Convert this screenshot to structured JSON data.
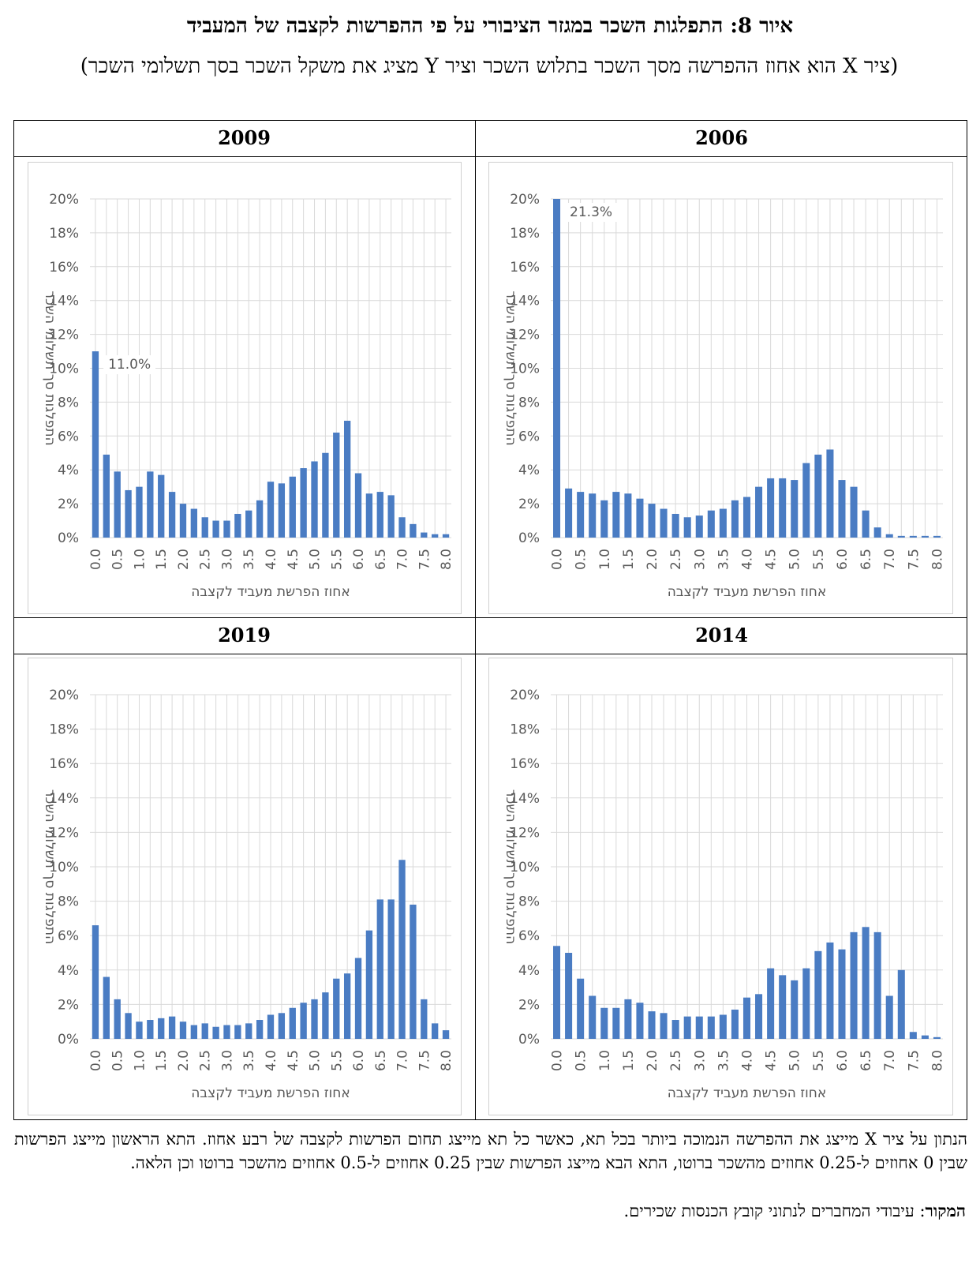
{
  "title": "איור 8: התפלגות השכר במגזר הציבורי על פי ההפרשות לקצבה של המעביד",
  "subtitle": "(ציר X הוא אחוז ההפרשה מסך השכר בתלוש השכר וציר Y מציג את משקל השכר בסך תשלומי השכר)",
  "chart_data": [
    {
      "type": "bar",
      "title": "2006",
      "color": "#4a7cc3",
      "grid": true,
      "xlabel": "אחוז הפרשת מעביד לקצבה",
      "ylabel": "התפלגות סך תשלומי השכר",
      "categories": [
        "0.0",
        null,
        "0.5",
        null,
        "1.0",
        null,
        "1.5",
        null,
        "2.0",
        null,
        "2.5",
        null,
        "3.0",
        null,
        "3.5",
        null,
        "4.0",
        null,
        "4.5",
        null,
        "5.0",
        null,
        "5.5",
        null,
        "6.0",
        null,
        "6.5",
        null,
        "7.0",
        null,
        "7.5",
        null,
        "8.0"
      ],
      "values": [
        21.3,
        2.9,
        2.7,
        2.6,
        2.2,
        2.7,
        2.6,
        2.3,
        2.0,
        1.7,
        1.4,
        1.2,
        1.3,
        1.6,
        1.7,
        2.2,
        2.4,
        3.0,
        3.5,
        3.5,
        3.4,
        4.4,
        4.9,
        5.2,
        3.4,
        3.0,
        1.6,
        0.6,
        0.2,
        0.1,
        0.1,
        0.1,
        0.1
      ],
      "value_labels": [
        "21.3%",
        null,
        null,
        null,
        null,
        null,
        null,
        null,
        null,
        null,
        null,
        null,
        null,
        null,
        null,
        null,
        null,
        null,
        null,
        null,
        null,
        null,
        null,
        null,
        null,
        null,
        null,
        null,
        null,
        null,
        null,
        null,
        null
      ],
      "ylim": [
        0,
        20
      ],
      "yticks": [
        {
          "value": 0,
          "label": "0%"
        },
        {
          "value": 2,
          "label": "2%"
        },
        {
          "value": 4,
          "label": "4%"
        },
        {
          "value": 6,
          "label": "6%"
        },
        {
          "value": 8,
          "label": "8%"
        },
        {
          "value": 10,
          "label": "10%"
        },
        {
          "value": 12,
          "label": "12%"
        },
        {
          "value": 14,
          "label": "14%"
        },
        {
          "value": 16,
          "label": "16%"
        },
        {
          "value": 18,
          "label": "18%"
        },
        {
          "value": 20,
          "label": "20%"
        }
      ]
    },
    {
      "type": "bar",
      "title": "2009",
      "color": "#4a7cc3",
      "grid": true,
      "xlabel": "אחוז הפרשת מעביד לקצבה",
      "ylabel": "התפלגות סך תשלומי השכר",
      "categories": [
        "0.0",
        null,
        "0.5",
        null,
        "1.0",
        null,
        "1.5",
        null,
        "2.0",
        null,
        "2.5",
        null,
        "3.0",
        null,
        "3.5",
        null,
        "4.0",
        null,
        "4.5",
        null,
        "5.0",
        null,
        "5.5",
        null,
        "6.0",
        null,
        "6.5",
        null,
        "7.0",
        null,
        "7.5",
        null,
        "8.0"
      ],
      "values": [
        11.0,
        4.9,
        3.9,
        2.8,
        3.0,
        3.9,
        3.7,
        2.7,
        2.0,
        1.7,
        1.2,
        1.0,
        1.0,
        1.4,
        1.6,
        2.2,
        3.3,
        3.2,
        3.6,
        4.1,
        4.5,
        5.0,
        6.2,
        6.9,
        3.8,
        2.6,
        2.7,
        2.5,
        1.2,
        0.8,
        0.3,
        0.2,
        0.2
      ],
      "value_labels": [
        "11.0%",
        null,
        null,
        null,
        null,
        null,
        null,
        null,
        null,
        null,
        null,
        null,
        null,
        null,
        null,
        null,
        null,
        null,
        null,
        null,
        null,
        null,
        null,
        null,
        null,
        null,
        null,
        null,
        null,
        null,
        null,
        null,
        null
      ],
      "ylim": [
        0,
        20
      ],
      "yticks": [
        {
          "value": 0,
          "label": "0%"
        },
        {
          "value": 2,
          "label": "2%"
        },
        {
          "value": 4,
          "label": "4%"
        },
        {
          "value": 6,
          "label": "6%"
        },
        {
          "value": 8,
          "label": "8%"
        },
        {
          "value": 10,
          "label": "10%"
        },
        {
          "value": 12,
          "label": "12%"
        },
        {
          "value": 14,
          "label": "14%"
        },
        {
          "value": 16,
          "label": "16%"
        },
        {
          "value": 18,
          "label": "18%"
        },
        {
          "value": 20,
          "label": "20%"
        }
      ]
    },
    {
      "type": "bar",
      "title": "2014",
      "color": "#4a7cc3",
      "grid": true,
      "xlabel": "אחוז הפרשת מעביד לקצבה",
      "ylabel": "התפלגות סך תשלומי השכר",
      "categories": [
        "0.0",
        null,
        "0.5",
        null,
        "1.0",
        null,
        "1.5",
        null,
        "2.0",
        null,
        "2.5",
        null,
        "3.0",
        null,
        "3.5",
        null,
        "4.0",
        null,
        "4.5",
        null,
        "5.0",
        null,
        "5.5",
        null,
        "6.0",
        null,
        "6.5",
        null,
        "7.0",
        null,
        "7.5",
        null,
        "8.0"
      ],
      "values": [
        5.4,
        5.0,
        3.5,
        2.5,
        1.8,
        1.8,
        2.3,
        2.1,
        1.6,
        1.5,
        1.1,
        1.3,
        1.3,
        1.3,
        1.4,
        1.7,
        2.4,
        2.6,
        4.1,
        3.7,
        3.4,
        4.1,
        5.1,
        5.6,
        5.2,
        6.2,
        6.5,
        6.2,
        2.5,
        4.0,
        0.4,
        0.2,
        0.1
      ],
      "ylim": [
        0,
        20
      ],
      "yticks": [
        {
          "value": 0,
          "label": "0%"
        },
        {
          "value": 2,
          "label": "2%"
        },
        {
          "value": 4,
          "label": "4%"
        },
        {
          "value": 6,
          "label": "6%"
        },
        {
          "value": 8,
          "label": "8%"
        },
        {
          "value": 10,
          "label": "10%"
        },
        {
          "value": 12,
          "label": "12%"
        },
        {
          "value": 14,
          "label": "14%"
        },
        {
          "value": 16,
          "label": "16%"
        },
        {
          "value": 18,
          "label": "18%"
        },
        {
          "value": 20,
          "label": "20%"
        }
      ]
    },
    {
      "type": "bar",
      "title": "2019",
      "color": "#4a7cc3",
      "grid": true,
      "xlabel": "אחוז הפרשת מעביד לקצבה",
      "ylabel": "התפלגות סך תשלומי השכר",
      "categories": [
        "0.0",
        null,
        "0.5",
        null,
        "1.0",
        null,
        "1.5",
        null,
        "2.0",
        null,
        "2.5",
        null,
        "3.0",
        null,
        "3.5",
        null,
        "4.0",
        null,
        "4.5",
        null,
        "5.0",
        null,
        "5.5",
        null,
        "6.0",
        null,
        "6.5",
        null,
        "7.0",
        null,
        "7.5",
        null,
        "8.0"
      ],
      "values": [
        6.6,
        3.6,
        2.3,
        1.5,
        1.0,
        1.1,
        1.2,
        1.3,
        1.0,
        0.8,
        0.9,
        0.7,
        0.8,
        0.8,
        0.9,
        1.1,
        1.4,
        1.5,
        1.8,
        2.1,
        2.3,
        2.7,
        3.5,
        3.8,
        4.7,
        6.3,
        8.1,
        8.1,
        10.4,
        7.8,
        2.3,
        0.9,
        0.5
      ],
      "ylim": [
        0,
        20
      ],
      "yticks": [
        {
          "value": 0,
          "label": "0%"
        },
        {
          "value": 2,
          "label": "2%"
        },
        {
          "value": 4,
          "label": "4%"
        },
        {
          "value": 6,
          "label": "6%"
        },
        {
          "value": 8,
          "label": "8%"
        },
        {
          "value": 10,
          "label": "10%"
        },
        {
          "value": 12,
          "label": "12%"
        },
        {
          "value": 14,
          "label": "14%"
        },
        {
          "value": 16,
          "label": "16%"
        },
        {
          "value": 18,
          "label": "18%"
        },
        {
          "value": 20,
          "label": "20%"
        }
      ]
    }
  ],
  "footnote": "הנתון על ציר X מייצג את ההפרשה הנמוכה ביותר בכל תא, כאשר כל תא מייצג תחום הפרשות לקצבה של רבע אחוז. התא הראשון מייצג הפרשות שבין 0 אחוזים ל-0.25 אחוזים מהשכר ברוטו, התא הבא מייצג הפרשות שבין 0.25 אחוזים ל-0.5 אחוזים מהשכר ברוטו וכן הלאה.",
  "source": {
    "label": "המקור",
    "text": ": עיבודי המחברים לנתוני קובץ הכנסות שכירים."
  }
}
